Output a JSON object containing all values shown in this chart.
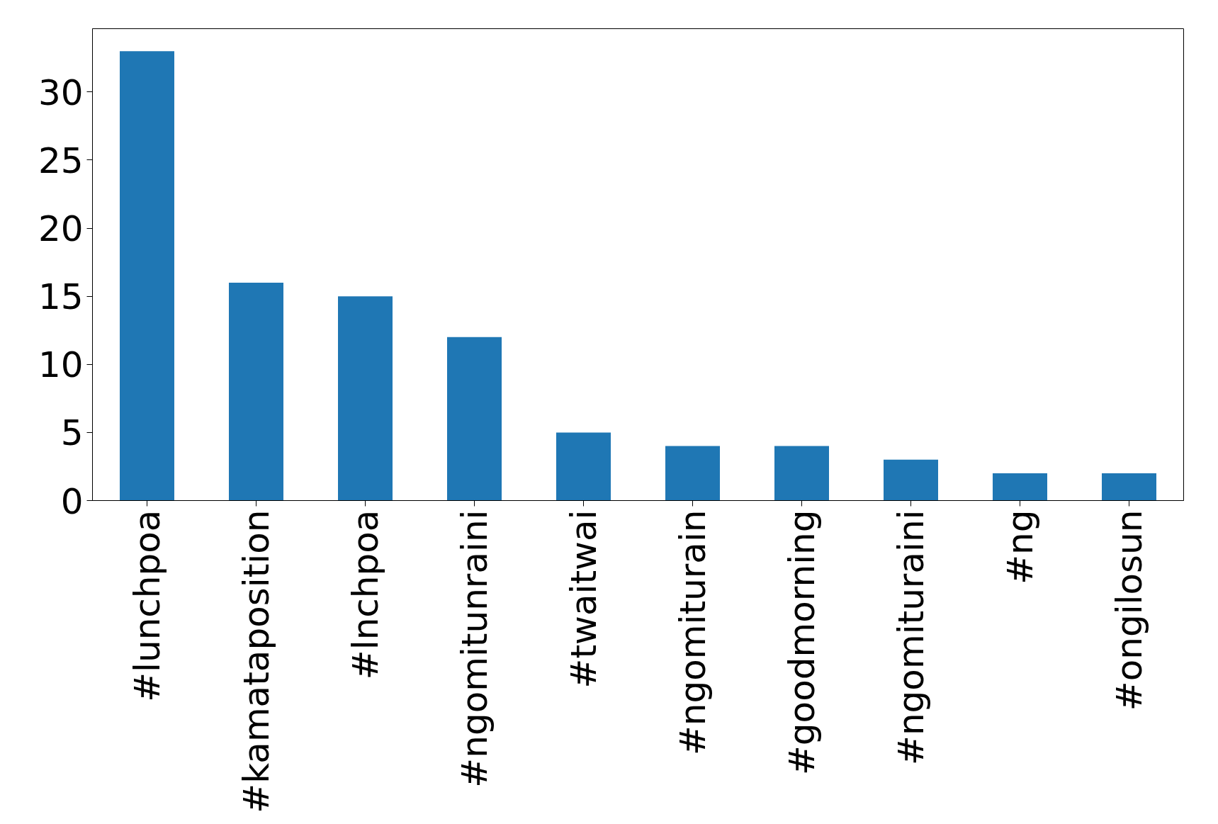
{
  "chart_data": {
    "type": "bar",
    "categories": [
      "#lunchpoa",
      "#kamataposition",
      "#lnchpoa",
      "#ngomitunraini",
      "#twaitwai",
      "#ngomiturain",
      "#goodmorning",
      "#ngomituraini",
      "#ng",
      "#ongilosun"
    ],
    "values": [
      33,
      16,
      15,
      12,
      5,
      4,
      4,
      3,
      2,
      2
    ],
    "color": "#1f77b4",
    "ylim": [
      0,
      34.65
    ],
    "yticks": [
      0,
      5,
      10,
      15,
      20,
      25,
      30
    ],
    "grid": false
  }
}
